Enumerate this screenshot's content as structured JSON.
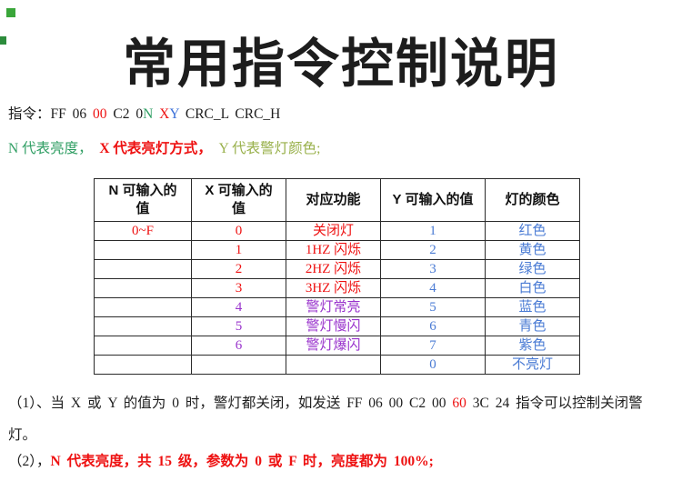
{
  "title": "常用指令控制说明",
  "colors": {
    "black": "#1d1d1d",
    "red": "#ee1111",
    "green": "#2f9e63",
    "blue": "#3a6fd8",
    "light_green": "#98b04a",
    "purple": "#9933cc",
    "table_blue": "#4a7bd4",
    "speck_green_1": "#3aa63a",
    "speck_green_2": "#2c8c3c"
  },
  "command_line": {
    "parts": [
      {
        "text": "指令：FF 06 ",
        "color": "black"
      },
      {
        "text": "00",
        "color": "red"
      },
      {
        "text": " C2 0",
        "color": "black"
      },
      {
        "text": "N",
        "color": "green"
      },
      {
        "text": " ",
        "color": "black"
      },
      {
        "text": "X",
        "color": "red"
      },
      {
        "text": "Y",
        "color": "blue"
      },
      {
        "text": " CRC_L CRC_H",
        "color": "black"
      }
    ]
  },
  "legend_line": {
    "parts": [
      {
        "text": "N 代表亮度，",
        "color": "green"
      },
      {
        "text": "  ",
        "color": "black"
      },
      {
        "text": "X 代表亮灯方式，",
        "color": "red",
        "bold": true
      },
      {
        "text": "  ",
        "color": "black"
      },
      {
        "text": "Y 代表警灯颜色;",
        "color": "light_green"
      }
    ]
  },
  "table": {
    "headers": [
      "N 可输入的\n值",
      "X 可输入的\n值",
      "对应功能",
      "Y 可输入的值",
      "灯的颜色"
    ],
    "rows": [
      [
        {
          "text": "0~F",
          "color": "red"
        },
        {
          "text": "0",
          "color": "red"
        },
        {
          "text": "关闭灯",
          "color": "red"
        },
        {
          "text": "1",
          "color": "table_blue"
        },
        {
          "text": "红色",
          "color": "table_blue"
        }
      ],
      [
        {
          "text": "",
          "color": "black"
        },
        {
          "text": "1",
          "color": "red"
        },
        {
          "text": "1HZ 闪烁",
          "color": "red"
        },
        {
          "text": "2",
          "color": "table_blue"
        },
        {
          "text": "黄色",
          "color": "table_blue"
        }
      ],
      [
        {
          "text": "",
          "color": "black"
        },
        {
          "text": "2",
          "color": "red"
        },
        {
          "text": "2HZ 闪烁",
          "color": "red"
        },
        {
          "text": "3",
          "color": "table_blue"
        },
        {
          "text": "绿色",
          "color": "table_blue"
        }
      ],
      [
        {
          "text": "",
          "color": "black"
        },
        {
          "text": "3",
          "color": "red"
        },
        {
          "text": "3HZ 闪烁",
          "color": "red"
        },
        {
          "text": "4",
          "color": "table_blue"
        },
        {
          "text": "白色",
          "color": "table_blue"
        }
      ],
      [
        {
          "text": "",
          "color": "black"
        },
        {
          "text": "4",
          "color": "purple"
        },
        {
          "text": "警灯常亮",
          "color": "purple"
        },
        {
          "text": "5",
          "color": "table_blue"
        },
        {
          "text": "蓝色",
          "color": "table_blue"
        }
      ],
      [
        {
          "text": "",
          "color": "black"
        },
        {
          "text": "5",
          "color": "purple"
        },
        {
          "text": "警灯慢闪",
          "color": "purple"
        },
        {
          "text": "6",
          "color": "table_blue"
        },
        {
          "text": "青色",
          "color": "table_blue"
        }
      ],
      [
        {
          "text": "",
          "color": "black"
        },
        {
          "text": "6",
          "color": "purple"
        },
        {
          "text": "警灯爆闪",
          "color": "purple"
        },
        {
          "text": "7",
          "color": "table_blue"
        },
        {
          "text": "紫色",
          "color": "table_blue"
        }
      ],
      [
        {
          "text": "",
          "color": "black"
        },
        {
          "text": "",
          "color": "black"
        },
        {
          "text": "",
          "color": "black"
        },
        {
          "text": "0",
          "color": "table_blue"
        },
        {
          "text": "不亮灯",
          "color": "table_blue"
        }
      ]
    ]
  },
  "notes": [
    {
      "parts": [
        {
          "text": "（1）、当 X 或 Y 的值为 0 时，警灯都关闭，如发送 FF 06 00 C2 00 ",
          "color": "black"
        },
        {
          "text": "60",
          "color": "red"
        },
        {
          "text": " 3C 24 指令可以控制关闭警\n灯。",
          "color": "black"
        }
      ]
    },
    {
      "parts": [
        {
          "text": "（2），",
          "color": "black"
        },
        {
          "text": "N 代表亮度，共 15 级，参数为 0 或 F 时，亮度都为 100%;",
          "color": "red",
          "bold": true
        }
      ]
    }
  ]
}
